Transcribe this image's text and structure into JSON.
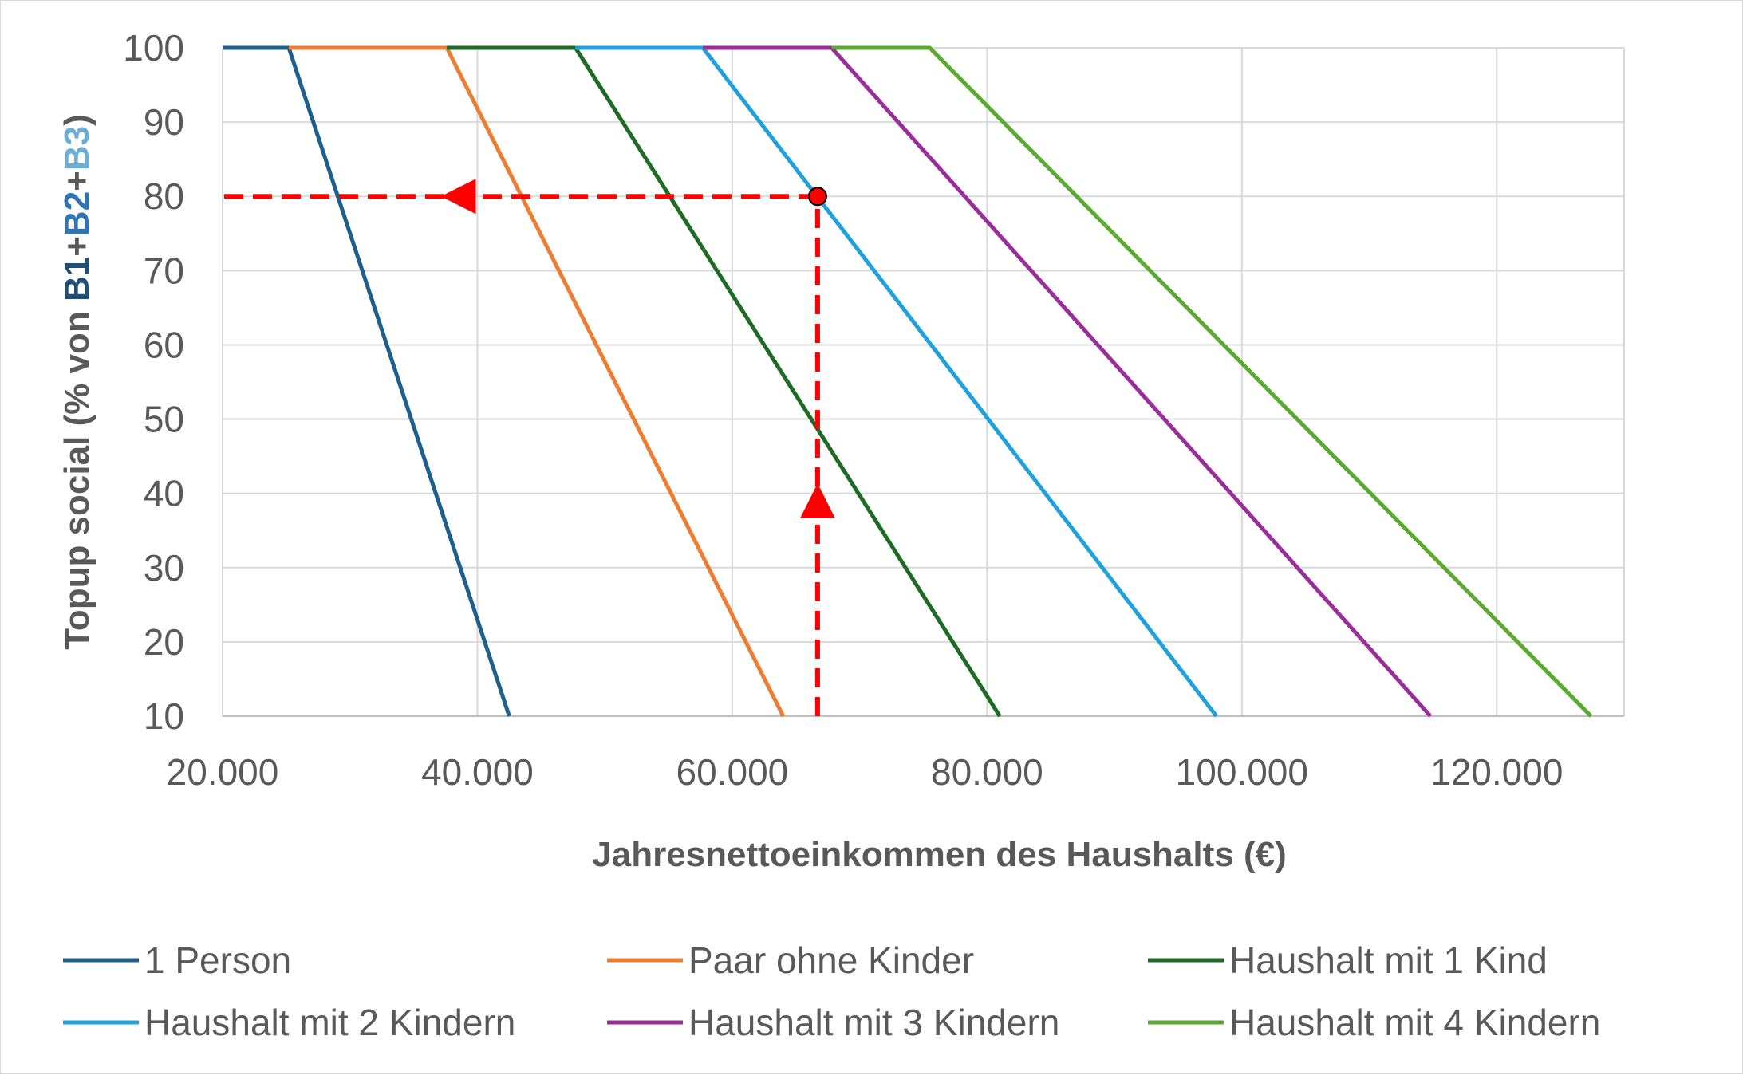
{
  "chart_data": {
    "type": "line",
    "xlabel": "Jahresnettoeinkommen des Haushalts (€)",
    "ylabel_parts": [
      {
        "text": "Topup social (% von ",
        "color": "#595959"
      },
      {
        "text": "B1",
        "color": "#1f4e79"
      },
      {
        "text": "+",
        "color": "#595959"
      },
      {
        "text": "B2",
        "color": "#2e75b6"
      },
      {
        "text": "+",
        "color": "#595959"
      },
      {
        "text": "B3",
        "color": "#6baed6"
      },
      {
        "text": ")",
        "color": "#595959"
      }
    ],
    "xlim": [
      20000,
      130000
    ],
    "ylim": [
      10,
      100
    ],
    "x_ticks": [
      20000,
      40000,
      60000,
      80000,
      100000,
      120000
    ],
    "x_tick_labels": [
      "20.000",
      "40.000",
      "60.000",
      "80.000",
      "100.000",
      "120.000"
    ],
    "y_ticks": [
      10,
      20,
      30,
      40,
      50,
      60,
      70,
      80,
      90,
      100
    ],
    "y_tick_labels": [
      "10",
      "20",
      "30",
      "40",
      "50",
      "60",
      "70",
      "80",
      "90",
      "100"
    ],
    "grid": true,
    "legend_position": "bottom",
    "series": [
      {
        "name": "1 Person",
        "color": "#1f5f8b",
        "x": [
          20000,
          25200,
          42500
        ],
        "y": [
          100,
          100,
          10
        ]
      },
      {
        "name": "Paar ohne Kinder",
        "color": "#ed7d31",
        "x": [
          25200,
          37600,
          64000
        ],
        "y": [
          100,
          100,
          10
        ]
      },
      {
        "name": "Haushalt mit 1 Kind",
        "color": "#1e6b24",
        "x": [
          37600,
          47700,
          81000
        ],
        "y": [
          100,
          100,
          10
        ]
      },
      {
        "name": "Haushalt mit 2 Kindern",
        "color": "#1ea1dc",
        "x": [
          47700,
          57700,
          98000
        ],
        "y": [
          100,
          100,
          10
        ]
      },
      {
        "name": "Haushalt mit 3 Kindern",
        "color": "#9b2d9b",
        "x": [
          57700,
          67800,
          114800
        ],
        "y": [
          100,
          100,
          10
        ]
      },
      {
        "name": "Haushalt mit 4 Kindern",
        "color": "#5aaa32",
        "x": [
          67800,
          75500,
          127400
        ],
        "y": [
          100,
          100,
          10
        ]
      }
    ],
    "annotations": {
      "color": "#ff0000",
      "marker_point": {
        "x": 66700,
        "y": 80
      },
      "horizontal_arrow": {
        "from_x": 66700,
        "to_x": 20000,
        "y": 80,
        "arrowhead_x": 38500
      },
      "vertical_arrow": {
        "x": 66700,
        "from_y": 10,
        "to_y": 80,
        "arrowhead_y": 39
      }
    }
  }
}
